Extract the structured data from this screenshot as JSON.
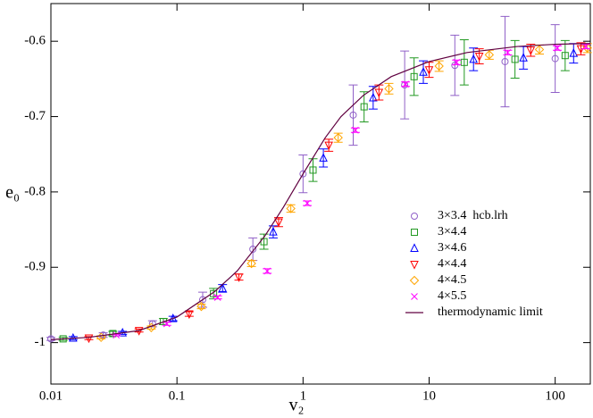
{
  "chart_data": {
    "type": "scatter",
    "x_label": "v₂",
    "y_label": "e₀",
    "xscale": "log",
    "xlim": [
      0.01,
      190
    ],
    "ylim": [
      -1.055,
      -0.55
    ],
    "xticks": [
      0.01,
      0.1,
      1,
      10,
      100
    ],
    "yticks": [
      -1,
      -0.9,
      -0.8,
      -0.7,
      -0.6
    ],
    "legend": "lower right",
    "series": [
      {
        "name": "3×3.4  hcb.lrh",
        "color": "#9060c8",
        "marker": "circle",
        "x": [
          0.01,
          0.026,
          0.064,
          0.16,
          0.4,
          1.0,
          2.5,
          6.4,
          16,
          40,
          100
        ],
        "values": [
          -0.995,
          -0.99,
          -0.975,
          -0.943,
          -0.876,
          -0.776,
          -0.698,
          -0.658,
          -0.632,
          -0.627,
          -0.623
        ],
        "errors": [
          0.002,
          0.003,
          0.004,
          0.01,
          0.015,
          0.025,
          0.04,
          0.045,
          0.04,
          0.06,
          0.045
        ]
      },
      {
        "name": "3×4.4",
        "color": "#229922",
        "marker": "square",
        "x": [
          0.0125,
          0.031,
          0.078,
          0.195,
          0.49,
          1.2,
          3.05,
          7.6,
          19,
          48,
          120
        ],
        "values": [
          -0.995,
          -0.988,
          -0.972,
          -0.935,
          -0.866,
          -0.771,
          -0.687,
          -0.647,
          -0.628,
          -0.624,
          -0.619
        ],
        "errors": [
          0.002,
          0.003,
          0.004,
          0.007,
          0.01,
          0.015,
          0.02,
          0.025,
          0.03,
          0.025,
          0.02
        ]
      },
      {
        "name": "3×4.6",
        "color": "#0000ff",
        "marker": "triangle",
        "x": [
          0.015,
          0.037,
          0.093,
          0.23,
          0.58,
          1.45,
          3.6,
          9,
          22.5,
          56,
          140
        ],
        "values": [
          -0.994,
          -0.987,
          -0.968,
          -0.928,
          -0.853,
          -0.755,
          -0.675,
          -0.641,
          -0.624,
          -0.622,
          -0.616
        ],
        "errors": [
          0.002,
          0.002,
          0.003,
          0.005,
          0.008,
          0.012,
          0.015,
          0.015,
          0.015,
          0.015,
          0.013
        ]
      },
      {
        "name": "4×4.4",
        "color": "#ff0000",
        "marker": "down-triangle",
        "x": [
          0.02,
          0.05,
          0.125,
          0.31,
          0.64,
          1.6,
          4,
          10,
          25,
          64,
          160
        ],
        "values": [
          -0.994,
          -0.984,
          -0.962,
          -0.913,
          -0.84,
          -0.738,
          -0.668,
          -0.638,
          -0.62,
          -0.612,
          -0.61
        ],
        "errors": [
          0.002,
          0.002,
          0.003,
          0.004,
          0.006,
          0.008,
          0.01,
          0.01,
          0.01,
          0.008,
          0.008
        ]
      },
      {
        "name": "4×4.5",
        "color": "#ffa500",
        "marker": "diamond",
        "x": [
          0.025,
          0.0625,
          0.156,
          0.39,
          0.8,
          1.9,
          4.8,
          12,
          30,
          75,
          180
        ],
        "values": [
          -0.993,
          -0.98,
          -0.952,
          -0.895,
          -0.822,
          -0.728,
          -0.663,
          -0.633,
          -0.618,
          -0.611,
          -0.609
        ],
        "errors": [
          0.002,
          0.002,
          0.003,
          0.004,
          0.005,
          0.006,
          0.007,
          0.007,
          0.006,
          0.006,
          0.006
        ]
      },
      {
        "name": "4×5.5",
        "color": "#ff00ff",
        "marker": "cross",
        "x": [
          0.033,
          0.083,
          0.21,
          0.52,
          1.08,
          2.6,
          6.5,
          16.5,
          42,
          104,
          175
        ],
        "values": [
          -0.99,
          -0.975,
          -0.94,
          -0.905,
          -0.815,
          -0.718,
          -0.657,
          -0.628,
          -0.615,
          -0.609,
          -0.607
        ],
        "errors": [
          0.001,
          0.002,
          0.002,
          0.003,
          0.003,
          0.003,
          0.003,
          0.003,
          0.003,
          0.003,
          0.003
        ]
      },
      {
        "name": "thermodynamic limit",
        "color": "#600040",
        "marker": "line",
        "x": [
          0.01,
          0.02,
          0.05,
          0.1,
          0.2,
          0.3,
          0.5,
          0.7,
          1,
          1.5,
          2,
          3,
          5,
          10,
          20,
          50,
          100,
          190
        ],
        "values": [
          -0.996,
          -0.993,
          -0.984,
          -0.966,
          -0.932,
          -0.905,
          -0.858,
          -0.82,
          -0.776,
          -0.728,
          -0.7,
          -0.672,
          -0.647,
          -0.627,
          -0.615,
          -0.607,
          -0.604,
          -0.603
        ]
      }
    ]
  }
}
